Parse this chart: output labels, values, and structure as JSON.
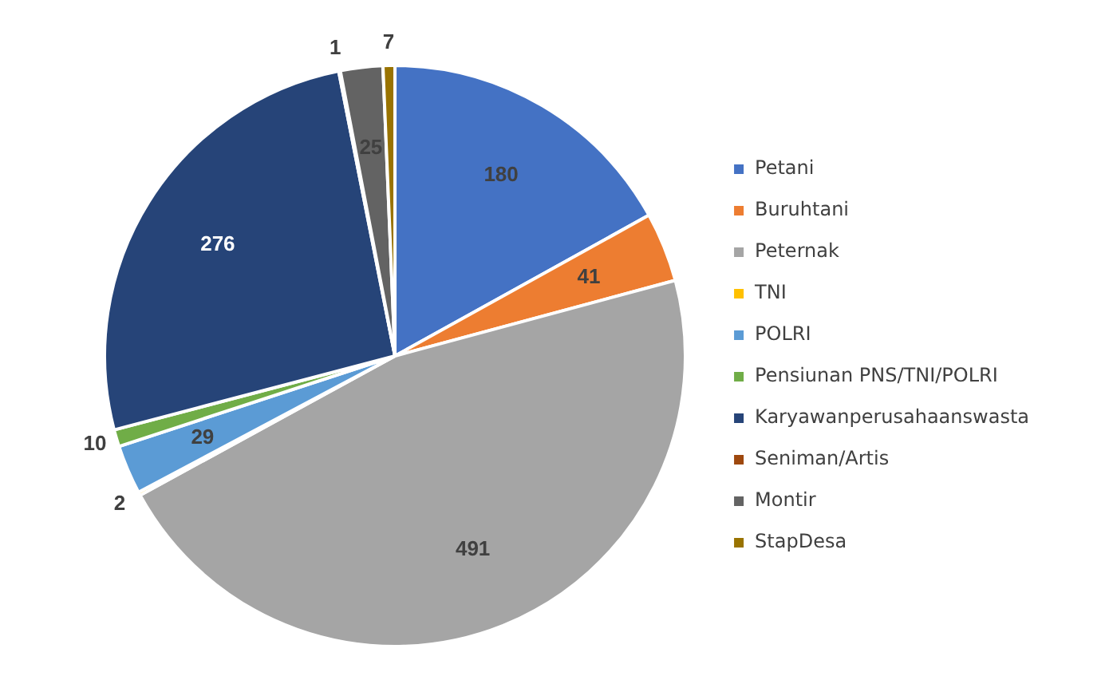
{
  "chart_data": {
    "type": "pie",
    "categories": [
      "Petani",
      "Buruhtani",
      "Peternak",
      "TNI",
      "POLRI",
      "Pensiunan PNS/TNI/POLRI",
      "Karyawanperusahaanswasta",
      "Seniman/Artis",
      "Montir",
      "StapDesa"
    ],
    "values": [
      180,
      41,
      491,
      2,
      29,
      10,
      276,
      1,
      25,
      7
    ],
    "colors": [
      "#4472c4",
      "#ed7d31",
      "#a5a5a5",
      "#ffc000",
      "#5b9bd5",
      "#70ad47",
      "#264478",
      "#9e480e",
      "#636363",
      "#997300"
    ],
    "data_labels": true,
    "legend": "right"
  }
}
